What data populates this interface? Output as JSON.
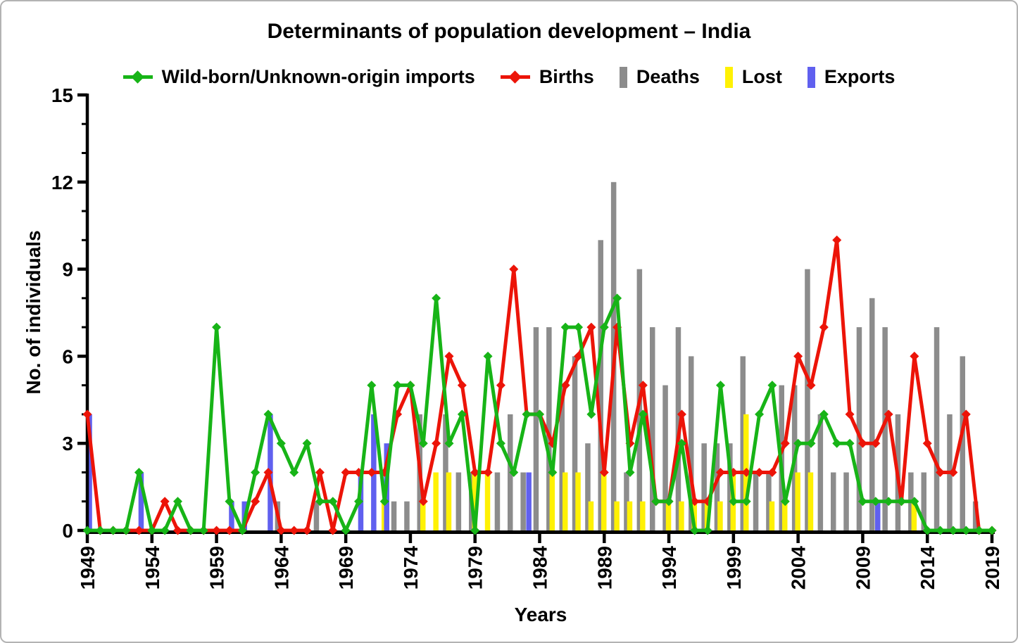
{
  "chart_title": "Determinants of population development – India",
  "chart_data": {
    "type": "line+bar",
    "title": "Determinants of population development – India",
    "xlabel": "Years",
    "ylabel": "No. of individuals",
    "x_start": 1949,
    "x_end": 2019,
    "ylim": [
      0,
      15
    ],
    "y_major_ticks": [
      0,
      3,
      6,
      9,
      12,
      15
    ],
    "x_tick_labels": [
      "1949",
      "1954",
      "1959",
      "1964",
      "1969",
      "1974",
      "1979",
      "1984",
      "1989",
      "1994",
      "1999",
      "2004",
      "2009",
      "2014",
      "2019"
    ],
    "grid": false,
    "legend_position": "top",
    "series": [
      {
        "name": "Wild-born/Unknown-origin imports",
        "key": "imports",
        "type": "line",
        "color": "#17B417",
        "values": [
          0,
          0,
          0,
          0,
          2,
          0,
          0,
          1,
          0,
          0,
          7,
          1,
          0,
          2,
          4,
          3,
          2,
          3,
          1,
          1,
          0,
          1,
          5,
          1,
          5,
          5,
          3,
          8,
          3,
          4,
          0,
          6,
          3,
          2,
          4,
          4,
          2,
          7,
          7,
          4,
          7,
          8,
          2,
          4,
          1,
          1,
          3,
          0,
          0,
          5,
          1,
          1,
          4,
          5,
          1,
          3,
          3,
          4,
          3,
          3,
          1,
          1,
          1,
          1,
          1,
          0,
          0,
          0,
          0,
          0,
          0
        ]
      },
      {
        "name": "Births",
        "key": "births",
        "type": "line",
        "color": "#EC1408",
        "values": [
          4,
          0,
          0,
          0,
          0,
          0,
          1,
          0,
          0,
          0,
          0,
          0,
          0,
          1,
          2,
          0,
          0,
          0,
          2,
          0,
          2,
          2,
          2,
          2,
          4,
          5,
          1,
          3,
          6,
          5,
          2,
          2,
          5,
          9,
          4,
          4,
          3,
          5,
          6,
          7,
          2,
          7,
          3,
          5,
          1,
          1,
          4,
          1,
          1,
          2,
          2,
          2,
          2,
          2,
          3,
          6,
          5,
          7,
          10,
          4,
          3,
          3,
          4,
          1,
          6,
          3,
          2,
          2,
          4,
          0,
          0
        ]
      },
      {
        "name": "Deaths",
        "key": "deaths",
        "type": "bar",
        "color": "#8C8C8C",
        "values": [
          0,
          0,
          0,
          0,
          0,
          0,
          0,
          0,
          0,
          0,
          0,
          0,
          0,
          0,
          0,
          1,
          0,
          0,
          1,
          0,
          0,
          0,
          0,
          0,
          1,
          1,
          4,
          0,
          4,
          2,
          2,
          0,
          2,
          4,
          2,
          7,
          7,
          5,
          6,
          3,
          10,
          12,
          2,
          9,
          7,
          5,
          7,
          6,
          3,
          3,
          3,
          6,
          2,
          2,
          5,
          5,
          9,
          4,
          2,
          2,
          7,
          8,
          7,
          4,
          2,
          2,
          7,
          4,
          6,
          1,
          0
        ]
      },
      {
        "name": "Lost",
        "key": "lost",
        "type": "bar",
        "color": "#FFF104",
        "values": [
          0,
          0,
          0,
          0,
          0,
          0,
          0,
          0,
          0,
          0,
          0,
          0,
          0,
          0,
          0,
          0,
          0,
          0,
          0,
          0,
          0,
          0,
          0,
          1,
          0,
          0,
          1,
          2,
          2,
          0,
          2,
          2,
          0,
          0,
          0,
          0,
          2,
          2,
          2,
          1,
          2,
          1,
          1,
          1,
          0,
          1,
          1,
          1,
          1,
          1,
          2,
          4,
          0,
          1,
          1,
          2,
          2,
          0,
          0,
          0,
          0,
          0,
          0,
          0,
          1,
          0,
          0,
          0,
          0,
          0,
          0
        ]
      },
      {
        "name": "Exports",
        "key": "exports",
        "type": "bar",
        "color": "#6060EF",
        "values": [
          4,
          0,
          0,
          0,
          2,
          0,
          0,
          0,
          0,
          0,
          0,
          1,
          1,
          0,
          4,
          0,
          0,
          0,
          0,
          0,
          0,
          2,
          4,
          3,
          0,
          0,
          0,
          0,
          0,
          0,
          0,
          0,
          0,
          0,
          2,
          0,
          0,
          0,
          0,
          0,
          0,
          0,
          0,
          0,
          0,
          0,
          0,
          0,
          0,
          0,
          0,
          0,
          0,
          0,
          0,
          0,
          0,
          0,
          0,
          0,
          0,
          1,
          0,
          0,
          0,
          0,
          0,
          0,
          0,
          0,
          0
        ]
      }
    ]
  },
  "colors": {
    "axis": "#000000",
    "text": "#000000",
    "border": "#b3b3b3",
    "background": "#ffffff"
  }
}
